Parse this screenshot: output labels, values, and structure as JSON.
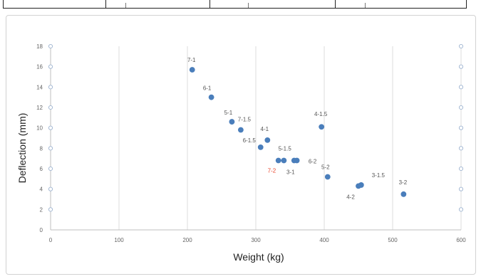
{
  "chart_data": {
    "type": "scatter",
    "title": "",
    "xlabel": "Weight  (kg)",
    "ylabel": "Deflection  (mm)",
    "xlim": [
      0,
      600
    ],
    "ylim": [
      0,
      18
    ],
    "x_ticks": [
      "0",
      "100",
      "200",
      "300",
      "400",
      "500",
      "600"
    ],
    "y_ticks": [
      "0",
      "2",
      "4",
      "6",
      "8",
      "10",
      "12",
      "14",
      "16",
      "18"
    ],
    "grid": "vertical",
    "point_color": "#4a7ebb",
    "highlight_label_color": "#e8452c",
    "points": [
      {
        "label": "7-1",
        "x": 207,
        "y": 15.7
      },
      {
        "label": "6-1",
        "x": 235,
        "y": 13.0
      },
      {
        "label": "5-1",
        "x": 265,
        "y": 10.6
      },
      {
        "label": "7-1.5",
        "x": 278,
        "y": 9.8
      },
      {
        "label": "6-1.5",
        "x": 307,
        "y": 8.1
      },
      {
        "label": "4-1",
        "x": 317,
        "y": 8.8
      },
      {
        "label": "5-1.5",
        "x": 333,
        "y": 6.8
      },
      {
        "label": "7-2",
        "x": 341,
        "y": 6.8
      },
      {
        "label": "3-1",
        "x": 356,
        "y": 6.8
      },
      {
        "label": "6-2",
        "x": 360,
        "y": 6.8
      },
      {
        "label": "4-1.5",
        "x": 396,
        "y": 10.1
      },
      {
        "label": "5-2",
        "x": 405,
        "y": 5.2
      },
      {
        "label": "4-2",
        "x": 450,
        "y": 4.3
      },
      {
        "label": "3-1.5",
        "x": 454,
        "y": 4.4
      },
      {
        "label": "3-2",
        "x": 516,
        "y": 3.5
      }
    ]
  }
}
